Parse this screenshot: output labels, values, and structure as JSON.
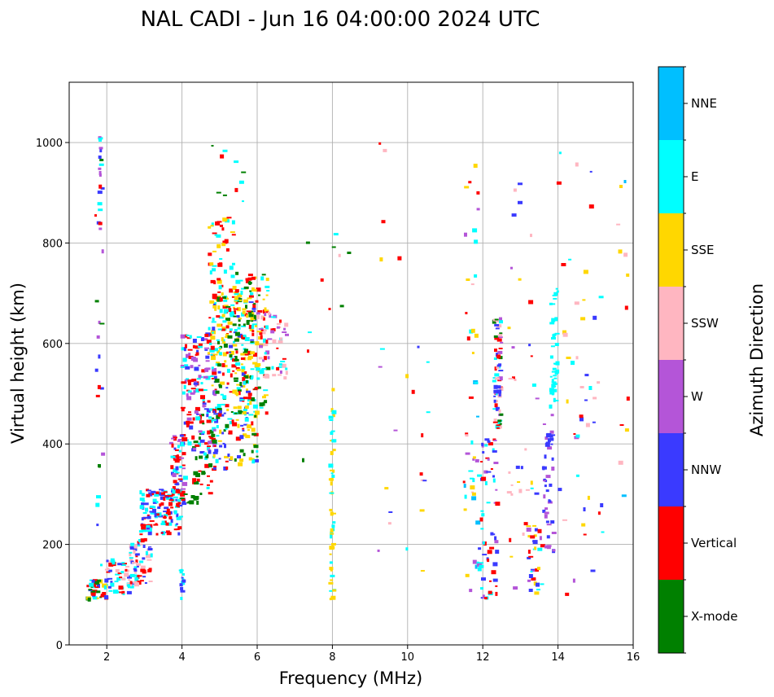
{
  "chart_data": {
    "type": "scatter",
    "title": "NAL CADI - Jun 16 04:00:00 2024 UTC",
    "xlabel": "Frequency (MHz)",
    "ylabel": "Virtual height (km)",
    "xlim": [
      1.0,
      16.0
    ],
    "ylim": [
      0,
      1120
    ],
    "xticks": [
      2,
      4,
      6,
      8,
      10,
      12,
      14,
      16
    ],
    "yticks": [
      0,
      200,
      400,
      600,
      800,
      1000
    ],
    "grid": true,
    "colorbar": {
      "title": "Azimuth Direction",
      "categories": [
        {
          "name": "X-mode",
          "color": "#008000"
        },
        {
          "name": "Vertical",
          "color": "#ff0000"
        },
        {
          "name": "NNW",
          "color": "#3a3aff"
        },
        {
          "name": "W",
          "color": "#b455d8"
        },
        {
          "name": "SSW",
          "color": "#ffb6c1"
        },
        {
          "name": "SSE",
          "color": "#ffd700"
        },
        {
          "name": "E",
          "color": "#00ffff"
        },
        {
          "name": "NNE",
          "color": "#00bfff"
        }
      ]
    },
    "clusters": [
      {
        "x": [
          1.5,
          2.0
        ],
        "y": [
          90,
          130
        ],
        "cats": [
          "Vertical",
          "E",
          "X-mode",
          "SSE",
          "NNW"
        ],
        "n": 45
      },
      {
        "x": [
          1.7,
          1.9
        ],
        "y": [
          150,
          1000
        ],
        "cats": [
          "NNW",
          "E",
          "W",
          "Vertical",
          "X-mode"
        ],
        "n": 25
      },
      {
        "x": [
          1.8,
          1.85
        ],
        "y": [
          830,
          1015
        ],
        "cats": [
          "E",
          "NNW",
          "W",
          "Vertical"
        ],
        "n": 12
      },
      {
        "x": [
          2.0,
          2.7
        ],
        "y": [
          100,
          170
        ],
        "cats": [
          "SSW",
          "NNW",
          "E",
          "Vertical"
        ],
        "n": 50
      },
      {
        "x": [
          2.6,
          3.2
        ],
        "y": [
          120,
          210
        ],
        "cats": [
          "SSW",
          "NNW",
          "E",
          "Vertical"
        ],
        "n": 60
      },
      {
        "x": [
          2.9,
          4.0
        ],
        "y": [
          220,
          310
        ],
        "cats": [
          "E",
          "Vertical",
          "NNW"
        ],
        "n": 130
      },
      {
        "x": [
          3.7,
          4.1
        ],
        "y": [
          280,
          420
        ],
        "cats": [
          "Vertical",
          "E",
          "NNW",
          "W"
        ],
        "n": 60
      },
      {
        "x": [
          4.0,
          4.5
        ],
        "y": [
          270,
          300
        ],
        "cats": [
          "X-mode"
        ],
        "n": 12
      },
      {
        "x": [
          4.3,
          4.9
        ],
        "y": [
          300,
          460
        ],
        "cats": [
          "X-mode",
          "E",
          "Vertical"
        ],
        "n": 45
      },
      {
        "x": [
          3.95,
          4.05
        ],
        "y": [
          90,
          150
        ],
        "cats": [
          "NNW",
          "E"
        ],
        "n": 14
      },
      {
        "x": [
          4.0,
          4.9
        ],
        "y": [
          380,
          620
        ],
        "cats": [
          "Vertical",
          "E",
          "NNW",
          "W"
        ],
        "n": 150
      },
      {
        "x": [
          4.7,
          5.4
        ],
        "y": [
          550,
          860
        ],
        "cats": [
          "Vertical",
          "E",
          "SSE"
        ],
        "n": 90
      },
      {
        "x": [
          4.8,
          6.0
        ],
        "y": [
          350,
          700
        ],
        "cats": [
          "E",
          "X-mode",
          "Vertical",
          "NNW",
          "SSE"
        ],
        "n": 240
      },
      {
        "x": [
          5.4,
          6.3
        ],
        "y": [
          460,
          740
        ],
        "cats": [
          "E",
          "X-mode",
          "SSE",
          "Vertical"
        ],
        "n": 150
      },
      {
        "x": [
          6.0,
          6.8
        ],
        "y": [
          530,
          660
        ],
        "cats": [
          "E",
          "W",
          "SSW",
          "Vertical"
        ],
        "n": 55
      },
      {
        "x": [
          4.8,
          5.8
        ],
        "y": [
          880,
          1000
        ],
        "cats": [
          "Vertical",
          "X-mode",
          "E"
        ],
        "n": 10
      },
      {
        "x": [
          7.0,
          8.6
        ],
        "y": [
          300,
          860
        ],
        "cats": [
          "SSW",
          "Vertical",
          "SSE",
          "E",
          "X-mode"
        ],
        "n": 14
      },
      {
        "x": [
          7.95,
          8.05
        ],
        "y": [
          90,
          480
        ],
        "cats": [
          "E",
          "SSE"
        ],
        "n": 45
      },
      {
        "x": [
          9.2,
          10.6
        ],
        "y": [
          90,
          1000
        ],
        "cats": [
          "SSE",
          "E",
          "NNW",
          "W",
          "SSW",
          "Vertical"
        ],
        "n": 24
      },
      {
        "x": [
          11.5,
          11.9
        ],
        "y": [
          100,
          980
        ],
        "cats": [
          "SSW",
          "W",
          "E",
          "NNE",
          "SSE",
          "Vertical"
        ],
        "n": 45
      },
      {
        "x": [
          11.9,
          12.4
        ],
        "y": [
          90,
          420
        ],
        "cats": [
          "NNW",
          "W",
          "E",
          "Vertical"
        ],
        "n": 65
      },
      {
        "x": [
          12.3,
          12.5
        ],
        "y": [
          430,
          650
        ],
        "cats": [
          "Vertical",
          "NNW",
          "W",
          "E",
          "SSW",
          "X-mode"
        ],
        "n": 70
      },
      {
        "x": [
          12.7,
          13.5
        ],
        "y": [
          90,
          990
        ],
        "cats": [
          "SSE",
          "W",
          "SSW",
          "NNW",
          "E",
          "Vertical"
        ],
        "n": 35
      },
      {
        "x": [
          13.2,
          13.6
        ],
        "y": [
          100,
          240
        ],
        "cats": [
          "SSE",
          "NNW",
          "Vertical",
          "E",
          "W"
        ],
        "n": 35
      },
      {
        "x": [
          13.6,
          13.9
        ],
        "y": [
          180,
          460
        ],
        "cats": [
          "NNW",
          "W"
        ],
        "n": 45
      },
      {
        "x": [
          13.8,
          14.0
        ],
        "y": [
          470,
          725
        ],
        "cats": [
          "E"
        ],
        "n": 40
      },
      {
        "x": [
          14.0,
          15.2
        ],
        "y": [
          90,
          1010
        ],
        "cats": [
          "W",
          "SSE",
          "SSW",
          "E",
          "NNW",
          "Vertical"
        ],
        "n": 45
      },
      {
        "x": [
          15.6,
          16.0
        ],
        "y": [
          260,
          960
        ],
        "cats": [
          "SSE",
          "Vertical",
          "SSW",
          "NNE"
        ],
        "n": 12
      }
    ]
  }
}
